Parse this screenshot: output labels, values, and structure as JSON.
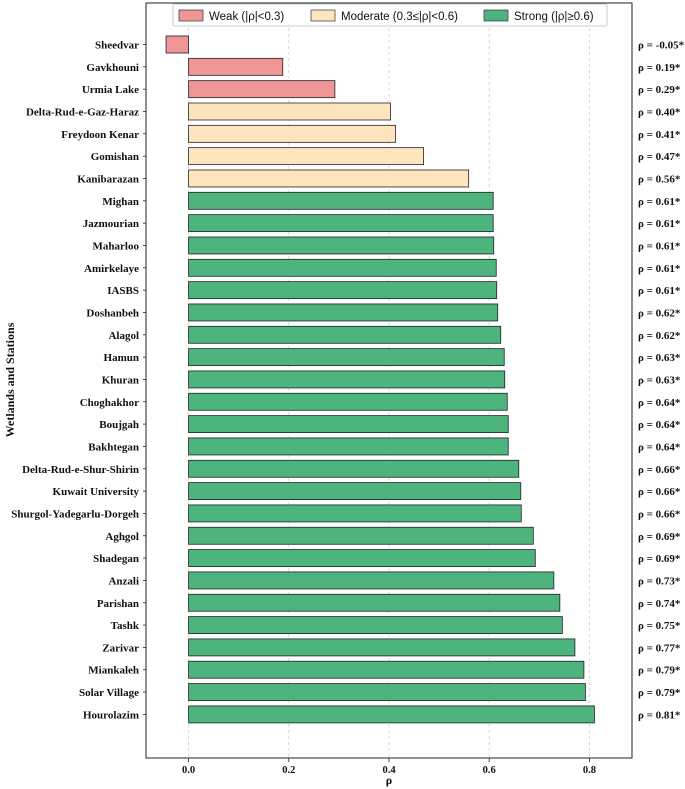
{
  "chart_data": {
    "type": "bar",
    "orientation": "horizontal",
    "categories": [
      "Sheedvar",
      "Gavkhouni",
      "Urmia Lake",
      "Delta-Rud-e-Gaz-Haraz",
      "Freydoon Kenar",
      "Gomishan",
      "Kanibarazan",
      "Mighan",
      "Jazmourian",
      "Maharloo",
      "Amirkelaye",
      "IASBS",
      "Doshanbeh",
      "Alagol",
      "Hamun",
      "Khuran",
      "Choghakhor",
      "Boujgah",
      "Bakhtegan",
      "Delta-Rud-e-Shur-Shirin",
      "Kuwait University",
      "Shurgol-Yadegarlu-Dorgeh",
      "Aghgol",
      "Shadegan",
      "Anzali",
      "Parishan",
      "Tashk",
      "Zarivar",
      "Miankaleh",
      "Solar Village",
      "Hourolazim"
    ],
    "values": [
      -0.045,
      0.188,
      0.292,
      0.403,
      0.413,
      0.469,
      0.559,
      0.608,
      0.608,
      0.609,
      0.614,
      0.615,
      0.617,
      0.623,
      0.63,
      0.631,
      0.636,
      0.638,
      0.638,
      0.659,
      0.663,
      0.664,
      0.688,
      0.692,
      0.729,
      0.741,
      0.746,
      0.771,
      0.789,
      0.792,
      0.81
    ],
    "value_labels": [
      "ρ = -0.05*",
      "ρ = 0.19*",
      "ρ = 0.29*",
      "ρ = 0.40*",
      "ρ = 0.41*",
      "ρ = 0.47*",
      "ρ = 0.56*",
      "ρ = 0.61*",
      "ρ = 0.61*",
      "ρ = 0.61*",
      "ρ = 0.61*",
      "ρ = 0.61*",
      "ρ = 0.62*",
      "ρ = 0.62*",
      "ρ = 0.63*",
      "ρ = 0.63*",
      "ρ = 0.64*",
      "ρ = 0.64*",
      "ρ = 0.64*",
      "ρ = 0.66*",
      "ρ = 0.66*",
      "ρ = 0.66*",
      "ρ = 0.69*",
      "ρ = 0.69*",
      "ρ = 0.73*",
      "ρ = 0.74*",
      "ρ = 0.75*",
      "ρ = 0.77*",
      "ρ = 0.79*",
      "ρ = 0.79*",
      "ρ = 0.81*"
    ],
    "xlabel": "ρ",
    "ylabel": "Wetlands and Stations",
    "xlim": [
      -0.085,
      0.885
    ],
    "xticks": [
      0.0,
      0.2,
      0.4,
      0.6,
      0.8
    ],
    "xtick_labels": [
      "0.0",
      "0.2",
      "0.4",
      "0.6",
      "0.8"
    ],
    "grid": "vertical dashed",
    "legend_position": "top-center",
    "legend": [
      {
        "name": "Weak (|ρ|<0.3)",
        "color": "#f09595"
      },
      {
        "name": "Moderate (0.3≤|ρ|<0.6)",
        "color": "#fde6bd"
      },
      {
        "name": "Strong (|ρ|≥0.6)",
        "color": "#4db47e"
      }
    ],
    "colors": {
      "weak": "#f09595",
      "moderate": "#fde6bd",
      "strong": "#4db47e"
    }
  }
}
